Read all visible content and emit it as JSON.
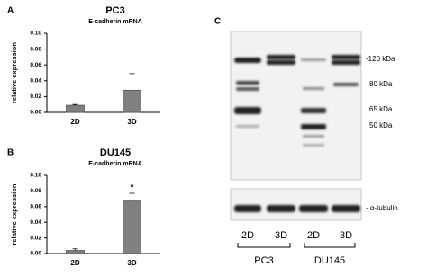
{
  "chart_data": [
    {
      "type": "bar",
      "panel": "A",
      "title": "PC3",
      "subtitle": "E-cadherin mRNA",
      "y_label": "relative expression",
      "categories": [
        "2D",
        "3D"
      ],
      "values": [
        0.009,
        0.028
      ],
      "errors": [
        0.001,
        0.021
      ],
      "color": "#808080",
      "ylim": [
        0,
        0.1
      ],
      "yticks": [
        {
          "value": 0,
          "label": "0.00"
        },
        {
          "value": 0.02,
          "label": "0.02"
        },
        {
          "value": 0.04,
          "label": "0.04"
        },
        {
          "value": 0.06,
          "label": "0.06"
        },
        {
          "value": 0.08,
          "label": "0.08"
        },
        {
          "value": 0.1,
          "label": "0.10"
        }
      ]
    },
    {
      "type": "bar",
      "panel": "B",
      "title": "DU145",
      "subtitle": "E-cadherin mRNA",
      "y_label": "relative expression",
      "categories": [
        "2D",
        "3D"
      ],
      "values": [
        0.004,
        0.068
      ],
      "errors": [
        0.002,
        0.009
      ],
      "color": "#808080",
      "annotation": "*",
      "ylim": [
        0,
        0.1
      ],
      "yticks": [
        {
          "value": 0,
          "label": "0.00"
        },
        {
          "value": 0.02,
          "label": "0.02"
        },
        {
          "value": 0.04,
          "label": "0.04"
        },
        {
          "value": 0.06,
          "label": "0.06"
        },
        {
          "value": 0.08,
          "label": "0.08"
        },
        {
          "value": 0.1,
          "label": "0.10"
        }
      ]
    }
  ],
  "blot": {
    "panel": "C",
    "markers": [
      "-120 kDa",
      "80 kDa",
      "65 kDa",
      "50 kDa"
    ],
    "loading_control": "- α-tubulin",
    "lanes": [
      "2D",
      "3D",
      "2D",
      "3D"
    ],
    "groups": [
      "PC3",
      "DU145"
    ]
  }
}
